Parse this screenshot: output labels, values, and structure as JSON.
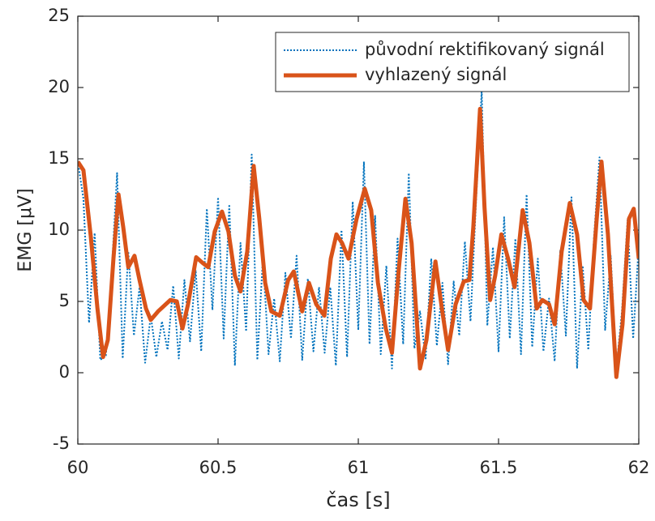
{
  "chart_data": {
    "type": "line",
    "xlabel": "čas [s]",
    "ylabel": "EMG [μV]",
    "xlim": [
      60,
      62
    ],
    "ylim": [
      -5,
      25
    ],
    "xticks": [
      60,
      60.5,
      61,
      61.5,
      62
    ],
    "yticks": [
      -5,
      0,
      5,
      10,
      15,
      20,
      25
    ],
    "grid": false,
    "legend": "top-right",
    "series": [
      {
        "name": "původní rektifikovaný signál",
        "color": "#0072BD",
        "style": "dotted",
        "x": [
          60.0,
          60.02,
          60.04,
          60.06,
          60.08,
          60.1,
          60.12,
          60.14,
          60.16,
          60.18,
          60.2,
          60.22,
          60.24,
          60.26,
          60.28,
          60.3,
          60.32,
          60.34,
          60.36,
          60.38,
          60.4,
          60.42,
          60.44,
          60.46,
          60.48,
          60.5,
          60.52,
          60.54,
          60.56,
          60.58,
          60.6,
          60.62,
          60.64,
          60.66,
          60.68,
          60.7,
          60.72,
          60.74,
          60.76,
          60.78,
          60.8,
          60.82,
          60.84,
          60.86,
          60.88,
          60.9,
          60.92,
          60.94,
          60.96,
          60.98,
          61.0,
          61.02,
          61.04,
          61.06,
          61.08,
          61.1,
          61.12,
          61.14,
          61.16,
          61.18,
          61.2,
          61.22,
          61.24,
          61.26,
          61.28,
          61.3,
          61.32,
          61.34,
          61.36,
          61.38,
          61.4,
          61.42,
          61.44,
          61.46,
          61.48,
          61.5,
          61.52,
          61.54,
          61.56,
          61.58,
          61.6,
          61.62,
          61.64,
          61.66,
          61.68,
          61.7,
          61.72,
          61.74,
          61.76,
          61.78,
          61.8,
          61.82,
          61.84,
          61.86,
          61.88,
          61.9,
          61.92,
          61.94,
          61.96,
          61.98,
          62.0
        ],
        "values": [
          14.8,
          12.2,
          3.5,
          9.8,
          0.9,
          1.2,
          6.8,
          14,
          1.0,
          8.5,
          2.6,
          6,
          0.7,
          4.0,
          1.1,
          3.6,
          1.6,
          6.1,
          1.0,
          6.5,
          2.2,
          7.2,
          1.5,
          11.5,
          4.4,
          12.3,
          2.4,
          11.8,
          0.5,
          9.1,
          2.9,
          15.3,
          0.9,
          8.1,
          1.3,
          5.2,
          0.8,
          7.0,
          2.4,
          8.2,
          0.9,
          6.6,
          1.5,
          6.0,
          1.4,
          6.0,
          0.5,
          10.0,
          1.1,
          12.0,
          3.0,
          14.8,
          2.0,
          11.0,
          1.3,
          7.5,
          0.3,
          9.4,
          2.0,
          14.0,
          1.7,
          4.3,
          1.0,
          8.0,
          1.9,
          6.3,
          0.6,
          6.4,
          2.6,
          9.2,
          3.6,
          12.1,
          19.8,
          3.3,
          8.8,
          1.5,
          10.9,
          2.4,
          9.4,
          1.3,
          12.5,
          1.8,
          8.0,
          1.5,
          5.2,
          0.8,
          8.6,
          2.6,
          12.3,
          0.3,
          7.5,
          1.6,
          9.4,
          15.1,
          3.0,
          8.2,
          0.3,
          4.3,
          10.7,
          2.4,
          9.0
        ]
      },
      {
        "name": "vyhlazený signál",
        "color": "#D95319",
        "style": "solid",
        "x": [
          60.0,
          60.02,
          60.046,
          60.07,
          60.09,
          60.107,
          60.127,
          60.145,
          60.162,
          60.18,
          60.202,
          60.22,
          60.243,
          60.26,
          60.286,
          60.33,
          60.353,
          60.373,
          60.393,
          60.422,
          60.445,
          60.465,
          60.488,
          60.514,
          60.537,
          60.56,
          60.58,
          60.604,
          60.627,
          60.647,
          60.668,
          60.69,
          60.72,
          60.75,
          60.77,
          60.8,
          60.824,
          60.85,
          60.879,
          60.902,
          60.922,
          60.942,
          60.965,
          60.994,
          61.023,
          61.046,
          61.07,
          61.098,
          61.12,
          61.145,
          61.168,
          61.19,
          61.22,
          61.243,
          61.275,
          61.298,
          61.32,
          61.347,
          61.376,
          61.396,
          61.41,
          61.434,
          61.45,
          61.47,
          61.488,
          61.51,
          61.534,
          61.557,
          61.586,
          61.61,
          61.636,
          61.656,
          61.68,
          61.7,
          61.725,
          61.754,
          61.78,
          61.803,
          61.826,
          61.85,
          61.867,
          61.89,
          61.92,
          61.942,
          61.965,
          61.982,
          62.0
        ],
        "values": [
          14.8,
          14.2,
          9.6,
          4.5,
          1.1,
          2.3,
          8,
          12.5,
          10.2,
          7.4,
          8.2,
          6.5,
          4.5,
          3.7,
          4.3,
          5.1,
          5.0,
          3.1,
          4.8,
          8.1,
          7.7,
          7.4,
          9.9,
          11.3,
          9.9,
          6.8,
          5.7,
          8.5,
          14.5,
          10.8,
          6.3,
          4.3,
          4.0,
          6.5,
          7.1,
          4.3,
          6.3,
          4.8,
          4.0,
          8.0,
          9.7,
          9.1,
          8.0,
          10.8,
          12.9,
          11.4,
          6.3,
          3.1,
          1.4,
          7.4,
          12.2,
          9.1,
          0.3,
          2.3,
          7.8,
          4.5,
          1.6,
          4.8,
          6.4,
          6.5,
          10.2,
          18.5,
          11.6,
          5.1,
          6.8,
          9.7,
          8.0,
          6.0,
          11.4,
          9.1,
          4.5,
          5.1,
          4.8,
          3.4,
          8.5,
          11.9,
          9.7,
          5.1,
          4.5,
          10.8,
          14.8,
          9.7,
          -0.3,
          3.4,
          10.8,
          11.5,
          8.0
        ]
      }
    ]
  }
}
